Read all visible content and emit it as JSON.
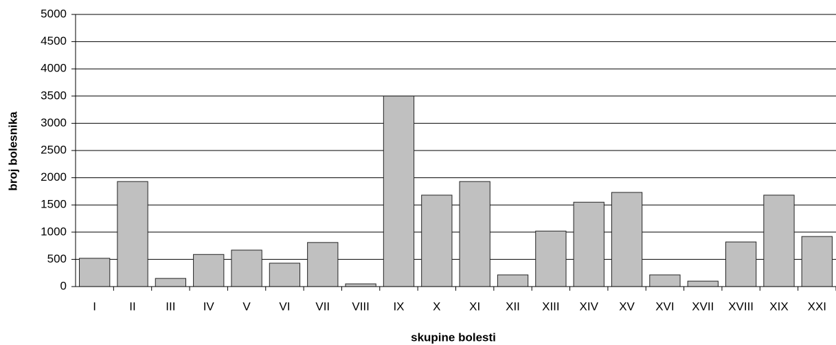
{
  "chart_data": {
    "type": "bar",
    "title": null,
    "x_label": "skupine bolesti",
    "y_label": "broj bolesnika",
    "categories": [
      "I",
      "II",
      "III",
      "IV",
      "V",
      "VI",
      "VII",
      "VIII",
      "IX",
      "X",
      "XI",
      "XII",
      "XIII",
      "XIV",
      "XV",
      "XVI",
      "XVII",
      "XVIII",
      "XIX",
      "XXI"
    ],
    "values": [
      520,
      1930,
      150,
      590,
      670,
      430,
      810,
      50,
      3500,
      1680,
      1930,
      215,
      1020,
      1550,
      1730,
      215,
      100,
      820,
      1680,
      920
    ],
    "color": "#c0c0c0",
    "ylim": [
      0,
      5000
    ],
    "yticks": [
      0,
      500,
      1000,
      1500,
      2000,
      2500,
      3000,
      3500,
      4000,
      4500,
      5000
    ],
    "grid": true
  }
}
